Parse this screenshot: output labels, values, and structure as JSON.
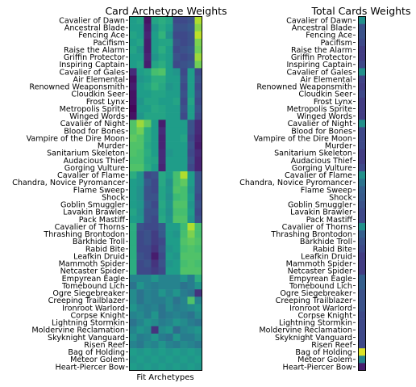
{
  "cards": [
    "Cavalier of Dawn",
    "Ancestral Blade",
    "Fencing Ace",
    "Pacifism",
    "Raise the Alarm",
    "Griffin Protector",
    "Inspiring Captain",
    "Cavalier of Gales",
    "Air Elemental",
    "Renowned Weaponsmith",
    "Cloudkin Seer",
    "Frost Lynx",
    "Metropolis Sprite",
    "Winged Words",
    "Cavalier of Night",
    "Blood for Bones",
    "Vampire of the Dire Moon",
    "Murder",
    "Sanitarium Skeleton",
    "Audacious Thief",
    "Gorging Vulture",
    "Cavalier of Flame",
    "Chandra, Novice Pyromancer",
    "Flame Sweep",
    "Shock",
    "Goblin Smuggler",
    "Lavakin Brawler",
    "Pack Mastiff",
    "Cavalier of Thorns",
    "Thrashing Brontodon",
    "Barkhide Troll",
    "Rabid Bite",
    "Leafkin Druid",
    "Mammoth Spider",
    "Netcaster Spider",
    "Empyrean Eagle",
    "Tomebound Lich",
    "Ogre Siegebreaker",
    "Creeping Trailblazer",
    "Ironroot Warlord",
    "Corpse Knight",
    "Lightning Stormkin",
    "Moldervine Reclamation",
    "Skyknight Vanguard",
    "Risen Reef",
    "Bag of Holding",
    "Meteor Golem",
    "Heart-Piercer Bow"
  ],
  "chart_data": [
    {
      "type": "heatmap",
      "title": "Card Archetype Weights",
      "xlabel": "Fit Archetypes",
      "ylabel": "",
      "colormap": "viridis",
      "value_range": [
        0,
        1
      ],
      "rows_ref": "cards",
      "columns": 10,
      "values": [
        [
          0.55,
          0.58,
          0.05,
          0.58,
          0.62,
          0.58,
          0.22,
          0.22,
          0.25,
          0.88
        ],
        [
          0.55,
          0.55,
          0.08,
          0.52,
          0.6,
          0.55,
          0.25,
          0.25,
          0.28,
          0.82
        ],
        [
          0.58,
          0.55,
          0.1,
          0.55,
          0.65,
          0.5,
          0.22,
          0.22,
          0.25,
          0.9
        ],
        [
          0.55,
          0.58,
          0.08,
          0.55,
          0.58,
          0.58,
          0.25,
          0.22,
          0.25,
          0.8
        ],
        [
          0.58,
          0.52,
          0.08,
          0.55,
          0.62,
          0.55,
          0.22,
          0.25,
          0.28,
          0.78
        ],
        [
          0.55,
          0.55,
          0.1,
          0.52,
          0.58,
          0.55,
          0.25,
          0.22,
          0.25,
          0.85
        ],
        [
          0.55,
          0.58,
          0.08,
          0.58,
          0.62,
          0.55,
          0.22,
          0.25,
          0.28,
          0.78
        ],
        [
          0.12,
          0.55,
          0.58,
          0.7,
          0.72,
          0.55,
          0.52,
          0.22,
          0.55,
          0.22
        ],
        [
          0.05,
          0.52,
          0.55,
          0.62,
          0.62,
          0.55,
          0.55,
          0.25,
          0.55,
          0.25
        ],
        [
          0.08,
          0.55,
          0.58,
          0.65,
          0.6,
          0.52,
          0.55,
          0.22,
          0.55,
          0.22
        ],
        [
          0.05,
          0.55,
          0.55,
          0.58,
          0.58,
          0.55,
          0.55,
          0.25,
          0.55,
          0.25
        ],
        [
          0.05,
          0.52,
          0.58,
          0.58,
          0.55,
          0.55,
          0.58,
          0.22,
          0.58,
          0.22
        ],
        [
          0.02,
          0.55,
          0.55,
          0.6,
          0.58,
          0.55,
          0.55,
          0.25,
          0.55,
          0.25
        ],
        [
          0.05,
          0.52,
          0.58,
          0.58,
          0.58,
          0.55,
          0.55,
          0.22,
          0.55,
          0.22
        ],
        [
          0.72,
          0.85,
          0.75,
          0.55,
          0.08,
          0.55,
          0.55,
          0.55,
          0.25,
          0.12
        ],
        [
          0.72,
          0.78,
          0.62,
          0.55,
          0.12,
          0.55,
          0.55,
          0.55,
          0.25,
          0.12
        ],
        [
          0.75,
          0.72,
          0.62,
          0.55,
          0.1,
          0.55,
          0.55,
          0.58,
          0.22,
          0.1
        ],
        [
          0.72,
          0.72,
          0.6,
          0.55,
          0.1,
          0.55,
          0.55,
          0.55,
          0.25,
          0.08
        ],
        [
          0.72,
          0.7,
          0.62,
          0.55,
          0.12,
          0.52,
          0.55,
          0.55,
          0.22,
          0.12
        ],
        [
          0.7,
          0.7,
          0.6,
          0.58,
          0.12,
          0.55,
          0.55,
          0.55,
          0.25,
          0.1
        ],
        [
          0.72,
          0.72,
          0.62,
          0.55,
          0.1,
          0.55,
          0.55,
          0.55,
          0.22,
          0.1
        ],
        [
          0.62,
          0.52,
          0.22,
          0.25,
          0.6,
          0.55,
          0.7,
          0.88,
          0.55,
          0.25
        ],
        [
          0.55,
          0.52,
          0.28,
          0.22,
          0.6,
          0.5,
          0.7,
          0.75,
          0.55,
          0.25
        ],
        [
          0.55,
          0.5,
          0.25,
          0.22,
          0.58,
          0.52,
          0.72,
          0.7,
          0.52,
          0.25
        ],
        [
          0.55,
          0.5,
          0.25,
          0.25,
          0.58,
          0.5,
          0.68,
          0.7,
          0.55,
          0.22
        ],
        [
          0.55,
          0.52,
          0.28,
          0.22,
          0.6,
          0.52,
          0.72,
          0.72,
          0.52,
          0.25
        ],
        [
          0.58,
          0.5,
          0.25,
          0.25,
          0.58,
          0.5,
          0.7,
          0.7,
          0.55,
          0.22
        ],
        [
          0.55,
          0.52,
          0.25,
          0.22,
          0.6,
          0.52,
          0.72,
          0.72,
          0.52,
          0.25
        ],
        [
          0.62,
          0.25,
          0.22,
          0.22,
          0.28,
          0.55,
          0.55,
          0.68,
          0.88,
          0.7
        ],
        [
          0.62,
          0.22,
          0.25,
          0.18,
          0.28,
          0.55,
          0.52,
          0.7,
          0.8,
          0.7
        ],
        [
          0.62,
          0.22,
          0.25,
          0.18,
          0.22,
          0.55,
          0.55,
          0.72,
          0.75,
          0.72
        ],
        [
          0.62,
          0.22,
          0.22,
          0.15,
          0.25,
          0.52,
          0.55,
          0.7,
          0.72,
          0.7
        ],
        [
          0.62,
          0.25,
          0.22,
          0.08,
          0.22,
          0.55,
          0.52,
          0.72,
          0.72,
          0.72
        ],
        [
          0.62,
          0.22,
          0.25,
          0.15,
          0.25,
          0.52,
          0.55,
          0.7,
          0.72,
          0.7
        ],
        [
          0.62,
          0.22,
          0.22,
          0.18,
          0.22,
          0.55,
          0.55,
          0.72,
          0.72,
          0.72
        ],
        [
          0.45,
          0.45,
          0.45,
          0.52,
          0.45,
          0.45,
          0.45,
          0.52,
          0.42,
          0.62
        ],
        [
          0.38,
          0.52,
          0.45,
          0.42,
          0.45,
          0.45,
          0.45,
          0.38,
          0.42,
          0.52
        ],
        [
          0.48,
          0.38,
          0.45,
          0.42,
          0.52,
          0.45,
          0.52,
          0.42,
          0.38,
          0.15
        ],
        [
          0.48,
          0.38,
          0.45,
          0.42,
          0.42,
          0.48,
          0.38,
          0.45,
          0.72,
          0.45
        ],
        [
          0.52,
          0.45,
          0.42,
          0.45,
          0.38,
          0.48,
          0.42,
          0.45,
          0.48,
          0.52
        ],
        [
          0.45,
          0.48,
          0.42,
          0.52,
          0.38,
          0.42,
          0.45,
          0.42,
          0.38,
          0.48
        ],
        [
          0.38,
          0.45,
          0.52,
          0.48,
          0.42,
          0.45,
          0.52,
          0.48,
          0.42,
          0.38
        ],
        [
          0.45,
          0.52,
          0.48,
          0.15,
          0.48,
          0.52,
          0.35,
          0.45,
          0.48,
          0.52
        ],
        [
          0.5,
          0.42,
          0.45,
          0.52,
          0.42,
          0.38,
          0.52,
          0.42,
          0.42,
          0.48
        ],
        [
          0.45,
          0.4,
          0.48,
          0.45,
          0.52,
          0.45,
          0.42,
          0.48,
          0.45,
          0.4
        ],
        [
          0.55,
          0.52,
          0.55,
          0.52,
          0.55,
          0.52,
          0.55,
          0.52,
          0.55,
          0.52
        ],
        [
          0.52,
          0.55,
          0.52,
          0.55,
          0.52,
          0.55,
          0.52,
          0.55,
          0.52,
          0.55
        ],
        [
          0.55,
          0.52,
          0.55,
          0.52,
          0.55,
          0.52,
          0.55,
          0.52,
          0.55,
          0.52
        ]
      ]
    },
    {
      "type": "heatmap",
      "title": "Total Cards Weights",
      "xlabel": "",
      "ylabel": "",
      "colormap": "viridis",
      "value_range": [
        0,
        1
      ],
      "rows_ref": "cards",
      "columns": 1,
      "values": [
        [
          0.5
        ],
        [
          0.25
        ],
        [
          0.25
        ],
        [
          0.22
        ],
        [
          0.18
        ],
        [
          0.18
        ],
        [
          0.22
        ],
        [
          0.5
        ],
        [
          0.2
        ],
        [
          0.18
        ],
        [
          0.22
        ],
        [
          0.18
        ],
        [
          0.18
        ],
        [
          0.18
        ],
        [
          0.5
        ],
        [
          0.22
        ],
        [
          0.22
        ],
        [
          0.22
        ],
        [
          0.18
        ],
        [
          0.18
        ],
        [
          0.22
        ],
        [
          0.5
        ],
        [
          0.38
        ],
        [
          0.3
        ],
        [
          0.28
        ],
        [
          0.25
        ],
        [
          0.22
        ],
        [
          0.22
        ],
        [
          0.5
        ],
        [
          0.3
        ],
        [
          0.25
        ],
        [
          0.22
        ],
        [
          0.18
        ],
        [
          0.18
        ],
        [
          0.18
        ],
        [
          0.3
        ],
        [
          0.3
        ],
        [
          0.25
        ],
        [
          0.25
        ],
        [
          0.25
        ],
        [
          0.22
        ],
        [
          0.22
        ],
        [
          0.22
        ],
        [
          0.22
        ],
        [
          0.22
        ],
        [
          0.95
        ],
        [
          0.45
        ],
        [
          0.08
        ]
      ]
    }
  ]
}
